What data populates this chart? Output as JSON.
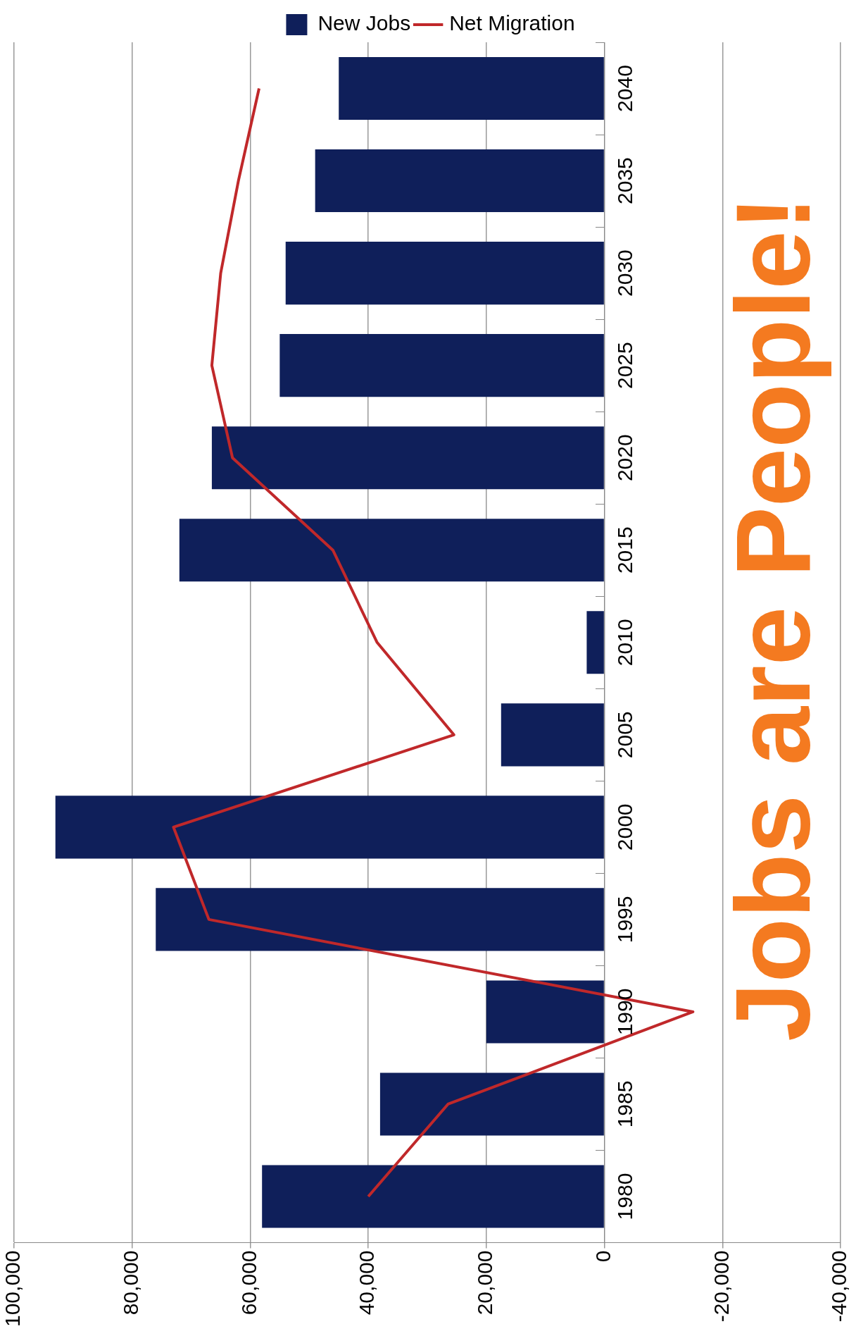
{
  "chart_data": {
    "type": "bar",
    "orientation": "horizontal",
    "categories": [
      "2040",
      "2035",
      "2030",
      "2025",
      "2020",
      "2015",
      "2010",
      "2005",
      "2000",
      "1995",
      "1990",
      "1985",
      "1980"
    ],
    "series": [
      {
        "name": "New Jobs",
        "color": "#0f1f5a",
        "values": [
          45000,
          49000,
          54000,
          55000,
          66500,
          72000,
          3000,
          17500,
          93000,
          76000,
          20000,
          38000,
          58000
        ]
      },
      {
        "name": "Net Migration",
        "type": "line",
        "color": "#c0282a",
        "values": [
          58500,
          62000,
          65000,
          66500,
          63000,
          46000,
          38500,
          25500,
          73000,
          67000,
          -15000,
          26500,
          40000
        ]
      }
    ],
    "xlim": [
      100000,
      -40000
    ],
    "xticks": [
      {
        "value": 100000,
        "label": "100,000"
      },
      {
        "value": 80000,
        "label": "80,000"
      },
      {
        "value": 60000,
        "label": "60,000"
      },
      {
        "value": 40000,
        "label": "40,000"
      },
      {
        "value": 20000,
        "label": "20,000"
      },
      0,
      {
        "value": -20000,
        "label": "-20,000"
      },
      {
        "value": -40000,
        "label": "-40,000"
      }
    ],
    "grid": "x",
    "legend": "top",
    "marker": "none",
    "annotations": [
      "Jobs are People!"
    ]
  }
}
